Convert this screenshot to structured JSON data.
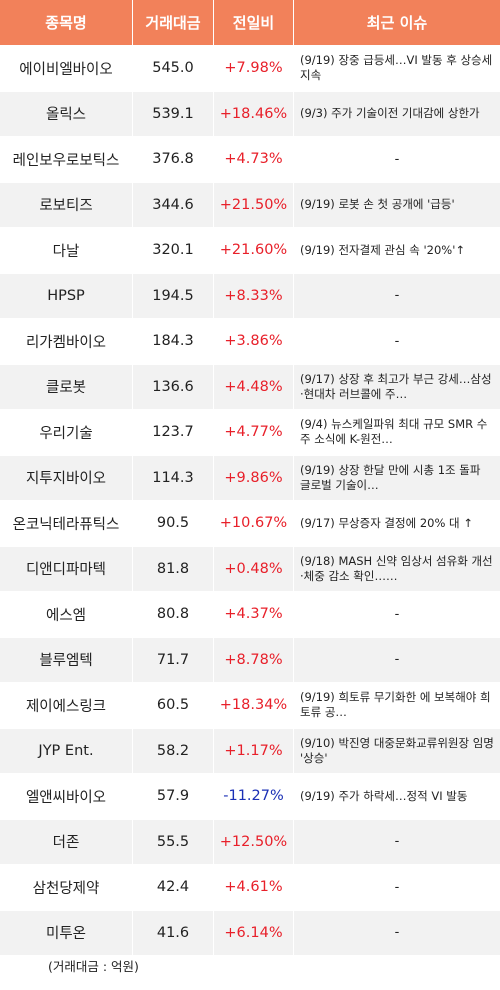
{
  "header": {
    "name": "종목명",
    "volume": "거래대금",
    "change": "전일비",
    "issue": "최근 이슈"
  },
  "rows": [
    {
      "name": "에이비엘바이오",
      "volume": "545.0",
      "change": "+7.98%",
      "direction": "up",
      "issue": "(9/19) 장중 급등세…VI 발동 후 상승세 지속"
    },
    {
      "name": "올릭스",
      "volume": "539.1",
      "change": "+18.46%",
      "direction": "up",
      "issue": "(9/3) 주가 기술이전 기대감에 상한가"
    },
    {
      "name": "레인보우로보틱스",
      "volume": "376.8",
      "change": "+4.73%",
      "direction": "up",
      "issue": "-"
    },
    {
      "name": "로보티즈",
      "volume": "344.6",
      "change": "+21.50%",
      "direction": "up",
      "issue": "(9/19) 로봇 손 첫 공개에 '급등'"
    },
    {
      "name": "다날",
      "volume": "320.1",
      "change": "+21.60%",
      "direction": "up",
      "issue": "(9/19) 전자결제 관심 속 '20%'↑"
    },
    {
      "name": "HPSP",
      "volume": "194.5",
      "change": "+8.33%",
      "direction": "up",
      "issue": "-"
    },
    {
      "name": "리가켐바이오",
      "volume": "184.3",
      "change": "+3.86%",
      "direction": "up",
      "issue": "-"
    },
    {
      "name": "클로봇",
      "volume": "136.6",
      "change": "+4.48%",
      "direction": "up",
      "issue": "(9/17) 상장 후 최고가 부근 강세…삼성·현대차 러브콜에 주…"
    },
    {
      "name": "우리기술",
      "volume": "123.7",
      "change": "+4.77%",
      "direction": "up",
      "issue": "(9/4) 뉴스케일파워 최대 규모 SMR 수주 소식에 K-원전…"
    },
    {
      "name": "지투지바이오",
      "volume": "114.3",
      "change": "+9.86%",
      "direction": "up",
      "issue": "(9/19) 상장 한달 만에 시총 1조 돌파 글로벌 기술이…"
    },
    {
      "name": "온코닉테라퓨틱스",
      "volume": "90.5",
      "change": "+10.67%",
      "direction": "up",
      "issue": "(9/17) 무상증자 결정에 20% 대 ↑"
    },
    {
      "name": "디앤디파마텍",
      "volume": "81.8",
      "change": "+0.48%",
      "direction": "up",
      "issue": "(9/18) MASH 신약 임상서 섬유화 개선·체중 감소 확인……"
    },
    {
      "name": "에스엠",
      "volume": "80.8",
      "change": "+4.37%",
      "direction": "up",
      "issue": "-"
    },
    {
      "name": "블루엠텍",
      "volume": "71.7",
      "change": "+8.78%",
      "direction": "up",
      "issue": "-"
    },
    {
      "name": "제이에스링크",
      "volume": "60.5",
      "change": "+18.34%",
      "direction": "up",
      "issue": "(9/19) 희토류 무기화한 에 보복해야 희토류 공…"
    },
    {
      "name": "JYP Ent.",
      "volume": "58.2",
      "change": "+1.17%",
      "direction": "up",
      "issue": "(9/10) 박진영 대중문화교류위원장 임명 '상승'"
    },
    {
      "name": "엘앤씨바이오",
      "volume": "57.9",
      "change": "-11.27%",
      "direction": "down",
      "issue": "(9/19) 주가 하락세…정적 VI 발동"
    },
    {
      "name": "더존",
      "volume": "55.5",
      "change": "+12.50%",
      "direction": "up",
      "issue": "-"
    },
    {
      "name": "삼천당제약",
      "volume": "42.4",
      "change": "+4.61%",
      "direction": "up",
      "issue": "-"
    },
    {
      "name": "미투온",
      "volume": "41.6",
      "change": "+6.14%",
      "direction": "up",
      "issue": "-"
    }
  ],
  "footnote": "(거래대금 : 억원)",
  "colors": {
    "header_bg": "#f2815a",
    "up": "#e8202a",
    "down": "#1a2fb5",
    "stripe": "#f2f2f2"
  }
}
